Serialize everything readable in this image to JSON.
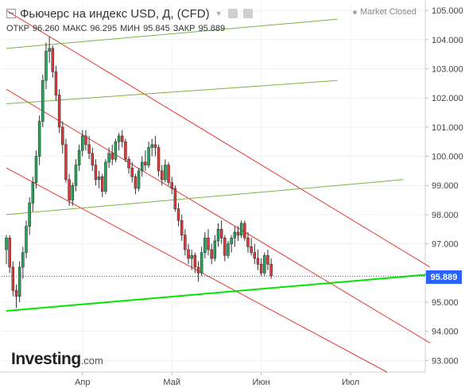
{
  "header": {
    "title": "Фьючерс на индекс USD, Д, (CFD)",
    "status": "Market Closed"
  },
  "ohlc": {
    "open_label": "ОТКР",
    "open": "96.260",
    "high_label": "МАКС",
    "high": "96.295",
    "low_label": "МИН",
    "low": "95.845",
    "close_label": "ЗАКР",
    "close": "95.889"
  },
  "price_tag": "95.889",
  "logo": {
    "main": "Investing",
    "suffix": ".com"
  },
  "colors": {
    "up": "#26a65b",
    "down": "#e53935",
    "trend_red": "#e53935",
    "trend_green": "#7cb342",
    "support": "#00e600",
    "accent": "#2962ff"
  },
  "chart_data": {
    "type": "candlestick",
    "y_ticks": [
      "105.000",
      "104.000",
      "103.000",
      "102.000",
      "101.000",
      "100.000",
      "99.000",
      "98.000",
      "97.000",
      "96.000",
      "95.000",
      "94.000",
      "93.000"
    ],
    "ylim": [
      92.6,
      105.25
    ],
    "x_ticks": [
      {
        "label": "Апр",
        "index": 23
      },
      {
        "label": "Май",
        "index": 50
      },
      {
        "label": "Июн",
        "index": 77
      },
      {
        "label": "Июл",
        "index": 104
      }
    ],
    "n_slots": 128,
    "last_price": 95.889,
    "candles": [
      [
        96.8,
        97.3,
        96.3,
        97.2
      ],
      [
        97.2,
        97.3,
        96.0,
        96.2
      ],
      [
        96.2,
        96.4,
        95.2,
        95.4
      ],
      [
        95.4,
        95.6,
        94.8,
        95.2
      ],
      [
        95.2,
        96.4,
        95.0,
        96.2
      ],
      [
        96.2,
        96.9,
        95.8,
        96.7
      ],
      [
        96.7,
        97.8,
        96.5,
        97.6
      ],
      [
        97.6,
        98.6,
        97.3,
        98.4
      ],
      [
        98.4,
        99.3,
        98.1,
        99.1
      ],
      [
        99.1,
        100.2,
        98.9,
        100.0
      ],
      [
        100.0,
        101.4,
        99.7,
        101.2
      ],
      [
        101.2,
        102.8,
        101.0,
        102.6
      ],
      [
        102.6,
        103.9,
        102.3,
        103.6
      ],
      [
        103.6,
        104.1,
        103.2,
        103.7
      ],
      [
        103.7,
        103.8,
        102.7,
        102.9
      ],
      [
        102.9,
        103.1,
        101.9,
        102.1
      ],
      [
        102.1,
        102.3,
        100.8,
        101.0
      ],
      [
        101.0,
        101.2,
        100.1,
        100.4
      ],
      [
        100.4,
        100.6,
        99.1,
        99.2
      ],
      [
        99.2,
        99.4,
        98.3,
        98.5
      ],
      [
        98.5,
        99.1,
        98.3,
        99.0
      ],
      [
        99.0,
        99.9,
        98.8,
        99.7
      ],
      [
        99.7,
        100.4,
        99.5,
        100.2
      ],
      [
        100.2,
        100.9,
        100.0,
        100.7
      ],
      [
        100.7,
        100.9,
        100.2,
        100.4
      ],
      [
        100.4,
        100.7,
        99.9,
        100.1
      ],
      [
        100.1,
        100.3,
        99.5,
        99.7
      ],
      [
        99.7,
        99.9,
        99.0,
        99.2
      ],
      [
        99.2,
        99.5,
        98.9,
        99.3
      ],
      [
        99.3,
        99.4,
        98.6,
        98.8
      ],
      [
        98.8,
        99.9,
        98.7,
        99.8
      ],
      [
        99.8,
        100.3,
        99.6,
        100.1
      ],
      [
        100.1,
        100.4,
        99.7,
        99.9
      ],
      [
        99.9,
        100.6,
        99.8,
        100.5
      ],
      [
        100.5,
        100.8,
        100.2,
        100.7
      ],
      [
        100.7,
        100.9,
        100.3,
        100.5
      ],
      [
        100.5,
        100.6,
        99.8,
        99.9
      ],
      [
        99.9,
        100.0,
        99.4,
        99.6
      ],
      [
        99.6,
        99.8,
        99.1,
        99.3
      ],
      [
        99.3,
        99.4,
        98.7,
        98.9
      ],
      [
        98.9,
        99.6,
        98.8,
        99.5
      ],
      [
        99.5,
        100.0,
        99.3,
        99.8
      ],
      [
        99.8,
        100.2,
        99.5,
        99.7
      ],
      [
        99.7,
        100.5,
        99.6,
        100.3
      ],
      [
        100.3,
        100.6,
        100.0,
        100.4
      ],
      [
        100.4,
        100.7,
        100.0,
        100.3
      ],
      [
        100.3,
        100.4,
        99.3,
        99.5
      ],
      [
        99.5,
        99.7,
        99.0,
        99.2
      ],
      [
        99.2,
        99.9,
        99.1,
        99.7
      ],
      [
        99.7,
        99.8,
        99.0,
        99.1
      ],
      [
        99.1,
        99.3,
        98.7,
        98.9
      ],
      [
        98.9,
        99.0,
        98.1,
        98.2
      ],
      [
        98.2,
        98.4,
        97.6,
        97.8
      ],
      [
        97.8,
        98.0,
        97.1,
        97.3
      ],
      [
        97.3,
        97.5,
        96.6,
        96.8
      ],
      [
        96.8,
        97.0,
        96.3,
        96.5
      ],
      [
        96.5,
        96.8,
        96.1,
        96.6
      ],
      [
        96.6,
        96.7,
        96.0,
        96.2
      ],
      [
        96.2,
        96.4,
        95.7,
        96.0
      ],
      [
        96.0,
        96.9,
        95.9,
        96.7
      ],
      [
        96.7,
        97.4,
        96.5,
        97.2
      ],
      [
        97.2,
        97.5,
        96.6,
        96.8
      ],
      [
        96.8,
        97.0,
        96.3,
        96.5
      ],
      [
        96.5,
        97.3,
        96.4,
        97.1
      ],
      [
        97.1,
        97.7,
        96.9,
        97.5
      ],
      [
        97.5,
        97.8,
        97.0,
        97.2
      ],
      [
        97.2,
        97.3,
        96.4,
        96.6
      ],
      [
        96.6,
        97.1,
        96.5,
        97.0
      ],
      [
        97.0,
        97.3,
        96.7,
        97.2
      ],
      [
        97.2,
        97.6,
        96.9,
        97.4
      ],
      [
        97.4,
        97.6,
        97.1,
        97.3
      ],
      [
        97.3,
        97.8,
        97.2,
        97.7
      ],
      [
        97.7,
        97.8,
        97.1,
        97.2
      ],
      [
        97.2,
        97.4,
        96.7,
        96.9
      ],
      [
        96.9,
        97.2,
        96.6,
        96.7
      ],
      [
        96.7,
        97.0,
        96.3,
        96.5
      ],
      [
        96.5,
        96.8,
        96.1,
        96.3
      ],
      [
        96.3,
        96.5,
        95.9,
        96.0
      ],
      [
        96.0,
        96.7,
        95.9,
        96.6
      ],
      [
        96.6,
        96.8,
        96.1,
        96.3
      ],
      [
        96.3,
        96.5,
        95.8,
        95.9
      ]
    ],
    "lines": [
      {
        "name": "red-channel-top",
        "color": "trend_red",
        "points": [
          [
            0,
            105.0
          ],
          [
            128,
            96.2
          ]
        ]
      },
      {
        "name": "red-channel-mid",
        "color": "trend_red",
        "points": [
          [
            0,
            102.3
          ],
          [
            128,
            93.6
          ]
        ]
      },
      {
        "name": "red-channel-bottom",
        "color": "trend_red",
        "points": [
          [
            0,
            99.6
          ],
          [
            115,
            92.6
          ]
        ]
      },
      {
        "name": "green-channel-top",
        "color": "trend_green",
        "points": [
          [
            0,
            103.7
          ],
          [
            100,
            104.7
          ]
        ]
      },
      {
        "name": "green-channel-mid",
        "color": "trend_green",
        "points": [
          [
            0,
            101.8
          ],
          [
            100,
            102.6
          ]
        ]
      },
      {
        "name": "green-channel-bottom",
        "color": "trend_green",
        "points": [
          [
            0,
            98.0
          ],
          [
            120,
            99.2
          ]
        ]
      },
      {
        "name": "support-line",
        "color": "support",
        "points": [
          [
            0,
            94.7
          ],
          [
            133,
            96.0
          ]
        ]
      }
    ]
  }
}
